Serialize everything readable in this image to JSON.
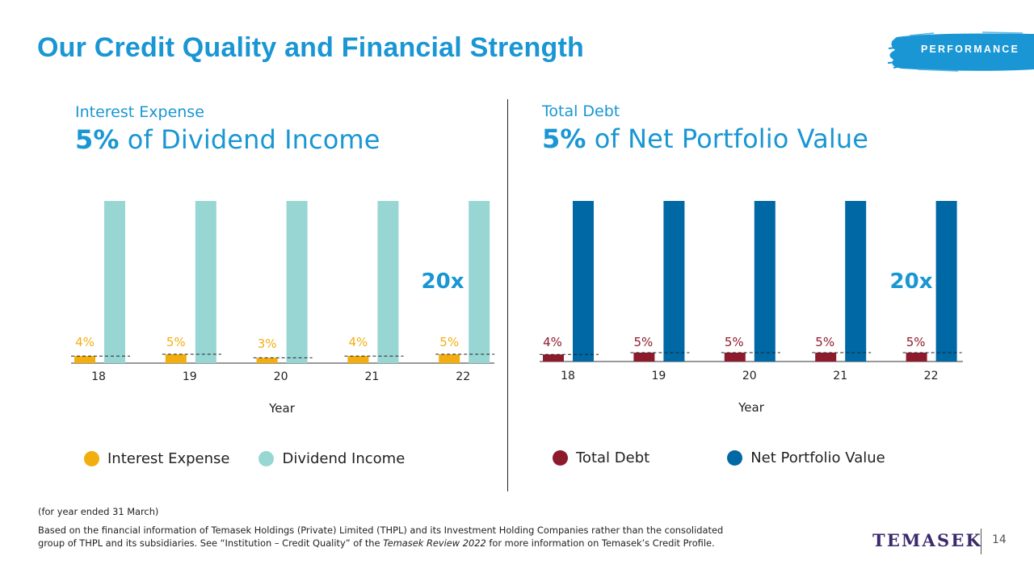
{
  "title": "Our Credit Quality and Financial Strength",
  "badge": "PERFORMANCE",
  "colors": {
    "accent": "#1996d3",
    "interest_expense": "#f2ae0f",
    "dividend_income": "#98d6d4",
    "total_debt": "#8e1a2d",
    "net_portfolio_value": "#0068a5",
    "logo": "#3b2a6b"
  },
  "left_panel": {
    "subtitle": "Interest Expense",
    "headline_bold": "5%",
    "headline_rest": " of Dividend Income",
    "legend": [
      "Interest Expense",
      "Dividend Income"
    ]
  },
  "right_panel": {
    "subtitle": "Total Debt",
    "headline_bold": "5%",
    "headline_rest": " of Net Portfolio Value",
    "legend": [
      "Total Debt",
      "Net Portfolio Value"
    ]
  },
  "chart_data": [
    {
      "type": "bar",
      "categories": [
        "18",
        "19",
        "20",
        "21",
        "22"
      ],
      "xlabel": "Year",
      "ylabel": "",
      "ylim": [
        0,
        100
      ],
      "grid": false,
      "legend_position": "bottom",
      "series": [
        {
          "name": "Interest Expense",
          "values": [
            4,
            5,
            3,
            4,
            5
          ],
          "labels": [
            "4%",
            "5%",
            "3%",
            "4%",
            "5%"
          ],
          "color": "#f2ae0f"
        },
        {
          "name": "Dividend Income",
          "values": [
            100,
            100,
            100,
            100,
            100
          ],
          "color": "#98d6d4"
        }
      ],
      "annotations": [
        "20x"
      ]
    },
    {
      "type": "bar",
      "categories": [
        "18",
        "19",
        "20",
        "21",
        "22"
      ],
      "xlabel": "Year",
      "ylabel": "",
      "ylim": [
        0,
        100
      ],
      "grid": false,
      "legend_position": "bottom",
      "series": [
        {
          "name": "Total Debt",
          "values": [
            4,
            5,
            5,
            5,
            5
          ],
          "labels": [
            "4%",
            "5%",
            "5%",
            "5%",
            "5%"
          ],
          "color": "#8e1a2d"
        },
        {
          "name": "Net Portfolio Value",
          "values": [
            100,
            100,
            100,
            100,
            100
          ],
          "color": "#0068a5"
        }
      ],
      "annotations": [
        "20x"
      ]
    }
  ],
  "footnote_1": "(for year ended 31 March)",
  "footnote_2_line1": "Based on the financial information of Temasek Holdings (Private) Limited (THPL) and its Investment Holding Companies rather than the consolidated",
  "footnote_2_line2a": "group of THPL and its subsidiaries.  See “Institution – Credit Quality” of the ",
  "footnote_2_italic": "Temasek Review 2022",
  "footnote_2_line2b": " for more information on Temasek’s Credit Profile.",
  "logo": "TEMASEK",
  "page_number": "14"
}
